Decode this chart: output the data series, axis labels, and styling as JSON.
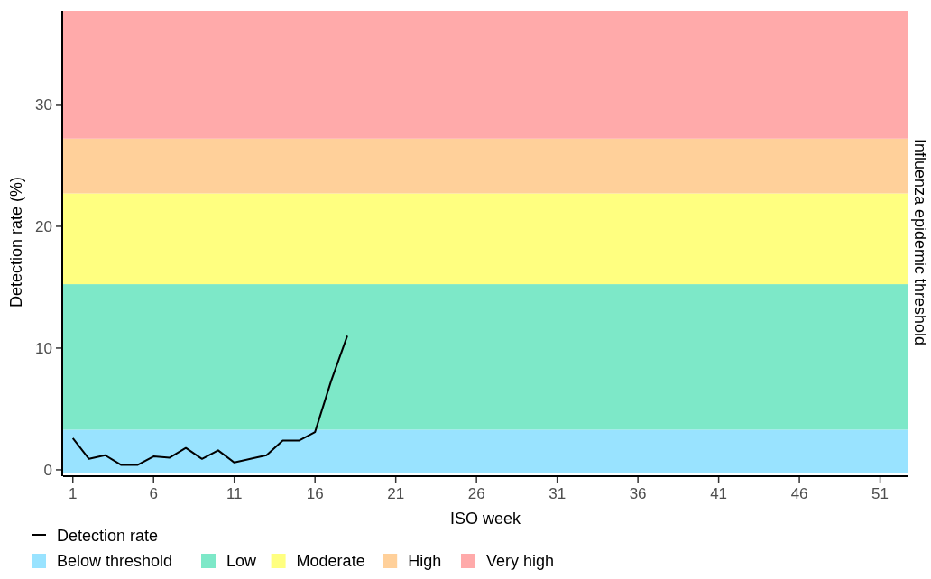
{
  "chart_data": {
    "type": "line",
    "xlabel": "ISO week",
    "ylabel": "Detection rate (%)",
    "y2label": "Influenza epidemic threshold",
    "x": [
      1,
      2,
      3,
      4,
      5,
      6,
      7,
      8,
      9,
      10,
      11,
      12,
      13,
      14,
      15,
      16,
      17,
      18
    ],
    "series": [
      {
        "name": "Detection rate",
        "color": "#000000",
        "values": [
          2.6,
          0.9,
          1.2,
          0.4,
          0.4,
          1.1,
          1.0,
          1.8,
          0.9,
          1.6,
          0.6,
          0.9,
          1.2,
          2.4,
          2.4,
          3.1,
          7.3,
          11.0
        ]
      }
    ],
    "xlim": [
      0.4,
      52.7
    ],
    "xticks": [
      1,
      6,
      11,
      16,
      21,
      26,
      31,
      36,
      41,
      46,
      51
    ],
    "ylim": [
      -0.3,
      37.7
    ],
    "yticks": [
      0,
      10,
      20,
      30
    ],
    "bands": [
      {
        "axis": "y",
        "from": -0.3,
        "to": 3.3,
        "label": "Below threshold",
        "color": "#99e3ff"
      },
      {
        "axis": "y",
        "from": 3.3,
        "to": 15.25,
        "label": "Low",
        "color": "#7de8c8"
      },
      {
        "axis": "y",
        "from": 15.25,
        "to": 22.7,
        "label": "Moderate",
        "color": "#ffff80"
      },
      {
        "axis": "y",
        "from": 22.7,
        "to": 27.2,
        "label": "High",
        "color": "#ffd09a"
      },
      {
        "axis": "y",
        "from": 27.2,
        "to": 37.7,
        "label": "Very high",
        "color": "#ffaaaa"
      }
    ],
    "grid": false,
    "legend": "bottom",
    "line_style": "solid",
    "marker": "none"
  }
}
